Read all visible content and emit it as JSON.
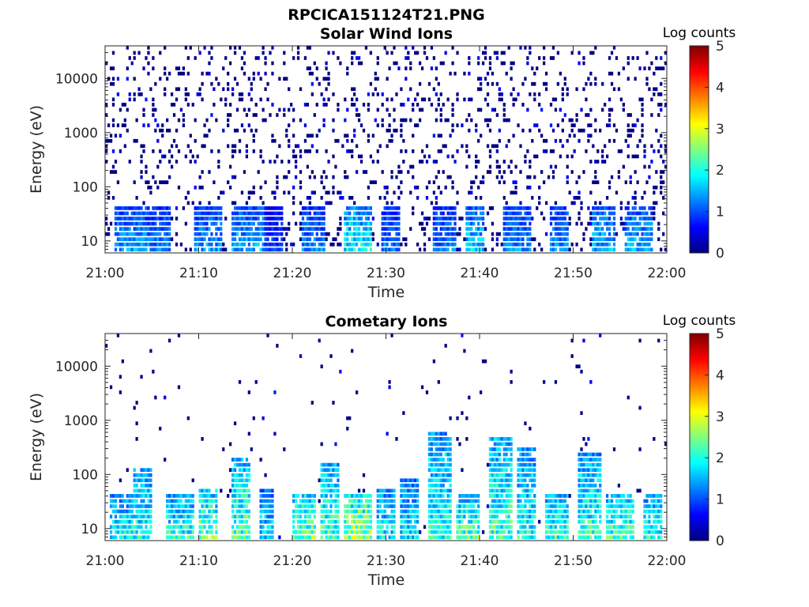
{
  "figure_title": "RPCICA151124T21.PNG",
  "chart_data": [
    {
      "type": "heatmap",
      "title": "Solar Wind Ions",
      "xlabel": "Time",
      "ylabel": "Energy (eV)",
      "x_ticks": [
        "21:00",
        "21:10",
        "21:20",
        "21:30",
        "21:40",
        "21:50",
        "22:00"
      ],
      "x_range": [
        "21:00",
        "22:00"
      ],
      "y_scale": "log",
      "y_ticks": [
        10,
        100,
        1000,
        10000
      ],
      "y_range": [
        6,
        40000
      ],
      "colorbar": {
        "label": "Log counts",
        "range": [
          0,
          5
        ],
        "ticks": [
          0,
          1,
          2,
          3,
          4,
          5
        ],
        "colormap": "jet"
      },
      "seed": 11,
      "sparse_density": 0.16,
      "bursts": [
        {
          "t0": 1.0,
          "t1": 4.5,
          "emax": 40,
          "peak": 1.8
        },
        {
          "t0": 4.5,
          "t1": 7.0,
          "emax": 40,
          "peak": 1.6
        },
        {
          "t0": 9.5,
          "t1": 12.5,
          "emax": 40,
          "peak": 1.8
        },
        {
          "t0": 13.5,
          "t1": 17.0,
          "emax": 40,
          "peak": 1.9
        },
        {
          "t0": 17.0,
          "t1": 19.0,
          "emax": 40,
          "peak": 1.2
        },
        {
          "t0": 21.0,
          "t1": 23.5,
          "emax": 40,
          "peak": 1.7
        },
        {
          "t0": 25.5,
          "t1": 28.5,
          "emax": 40,
          "peak": 2.4
        },
        {
          "t0": 29.5,
          "t1": 31.5,
          "emax": 40,
          "peak": 1.6
        },
        {
          "t0": 35.0,
          "t1": 37.5,
          "emax": 40,
          "peak": 1.6
        },
        {
          "t0": 38.5,
          "t1": 40.5,
          "emax": 40,
          "peak": 2.1
        },
        {
          "t0": 42.5,
          "t1": 45.5,
          "emax": 40,
          "peak": 1.7
        },
        {
          "t0": 47.5,
          "t1": 49.5,
          "emax": 40,
          "peak": 1.7
        },
        {
          "t0": 52.0,
          "t1": 54.5,
          "emax": 40,
          "peak": 2.0
        },
        {
          "t0": 55.5,
          "t1": 58.5,
          "emax": 40,
          "peak": 1.9
        }
      ]
    },
    {
      "type": "heatmap",
      "title": "Cometary Ions",
      "xlabel": "Time",
      "ylabel": "Energy (eV)",
      "x_ticks": [
        "21:00",
        "21:10",
        "21:20",
        "21:30",
        "21:40",
        "21:50",
        "22:00"
      ],
      "x_range": [
        "21:00",
        "22:00"
      ],
      "y_scale": "log",
      "y_ticks": [
        10,
        100,
        1000,
        10000
      ],
      "y_range": [
        6,
        40000
      ],
      "colorbar": {
        "label": "Log counts",
        "range": [
          0,
          5
        ],
        "ticks": [
          0,
          1,
          2,
          3,
          4,
          5
        ],
        "colormap": "jet"
      },
      "seed": 29,
      "sparse_density": 0.018,
      "bursts": [
        {
          "t0": 0.5,
          "t1": 3.0,
          "emax": 45,
          "peak": 2.4
        },
        {
          "t0": 3.0,
          "t1": 5.0,
          "emax": 130,
          "peak": 2.6
        },
        {
          "t0": 6.5,
          "t1": 9.5,
          "emax": 45,
          "peak": 2.6
        },
        {
          "t0": 10.0,
          "t1": 12.0,
          "emax": 60,
          "peak": 3.0
        },
        {
          "t0": 13.5,
          "t1": 15.5,
          "emax": 200,
          "peak": 3.0
        },
        {
          "t0": 16.5,
          "t1": 18.0,
          "emax": 50,
          "peak": 2.2
        },
        {
          "t0": 20.0,
          "t1": 22.5,
          "emax": 45,
          "peak": 3.2
        },
        {
          "t0": 23.0,
          "t1": 25.0,
          "emax": 160,
          "peak": 2.8
        },
        {
          "t0": 25.5,
          "t1": 28.5,
          "emax": 45,
          "peak": 3.4
        },
        {
          "t0": 29.0,
          "t1": 31.0,
          "emax": 60,
          "peak": 2.4
        },
        {
          "t0": 31.5,
          "t1": 33.5,
          "emax": 90,
          "peak": 2.3
        },
        {
          "t0": 34.5,
          "t1": 37.0,
          "emax": 600,
          "peak": 2.6
        },
        {
          "t0": 37.5,
          "t1": 40.0,
          "emax": 45,
          "peak": 3.0
        },
        {
          "t0": 41.0,
          "t1": 43.5,
          "emax": 500,
          "peak": 2.8
        },
        {
          "t0": 44.0,
          "t1": 46.0,
          "emax": 300,
          "peak": 2.5
        },
        {
          "t0": 47.0,
          "t1": 49.5,
          "emax": 45,
          "peak": 2.8
        },
        {
          "t0": 50.5,
          "t1": 53.0,
          "emax": 250,
          "peak": 2.7
        },
        {
          "t0": 53.5,
          "t1": 56.5,
          "emax": 45,
          "peak": 2.9
        },
        {
          "t0": 57.5,
          "t1": 59.5,
          "emax": 45,
          "peak": 2.7
        }
      ]
    }
  ]
}
